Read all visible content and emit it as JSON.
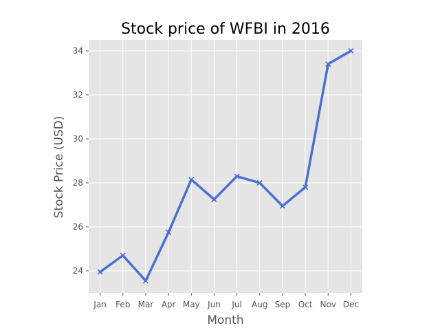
{
  "chart_data": {
    "type": "line",
    "title": "Stock price of WFBI in 2016",
    "xlabel": "Month",
    "ylabel": "Stock Price (USD)",
    "categories": [
      "Jan",
      "Feb",
      "Mar",
      "Apr",
      "May",
      "Jun",
      "Jul",
      "Aug",
      "Sep",
      "Oct",
      "Nov",
      "Dec"
    ],
    "series": [
      {
        "name": "WFBI",
        "values": [
          23.95,
          24.7,
          23.55,
          25.75,
          28.15,
          27.25,
          28.3,
          28.0,
          26.95,
          27.8,
          33.4,
          34.0
        ],
        "color": "#4c6fd2",
        "marker": "x"
      }
    ],
    "ylim": [
      23.0,
      34.5
    ],
    "yticks": [
      24,
      26,
      28,
      30,
      32,
      34
    ],
    "grid": true,
    "style": {
      "background": "#e5e5e5",
      "grid_color": "#ffffff"
    }
  }
}
